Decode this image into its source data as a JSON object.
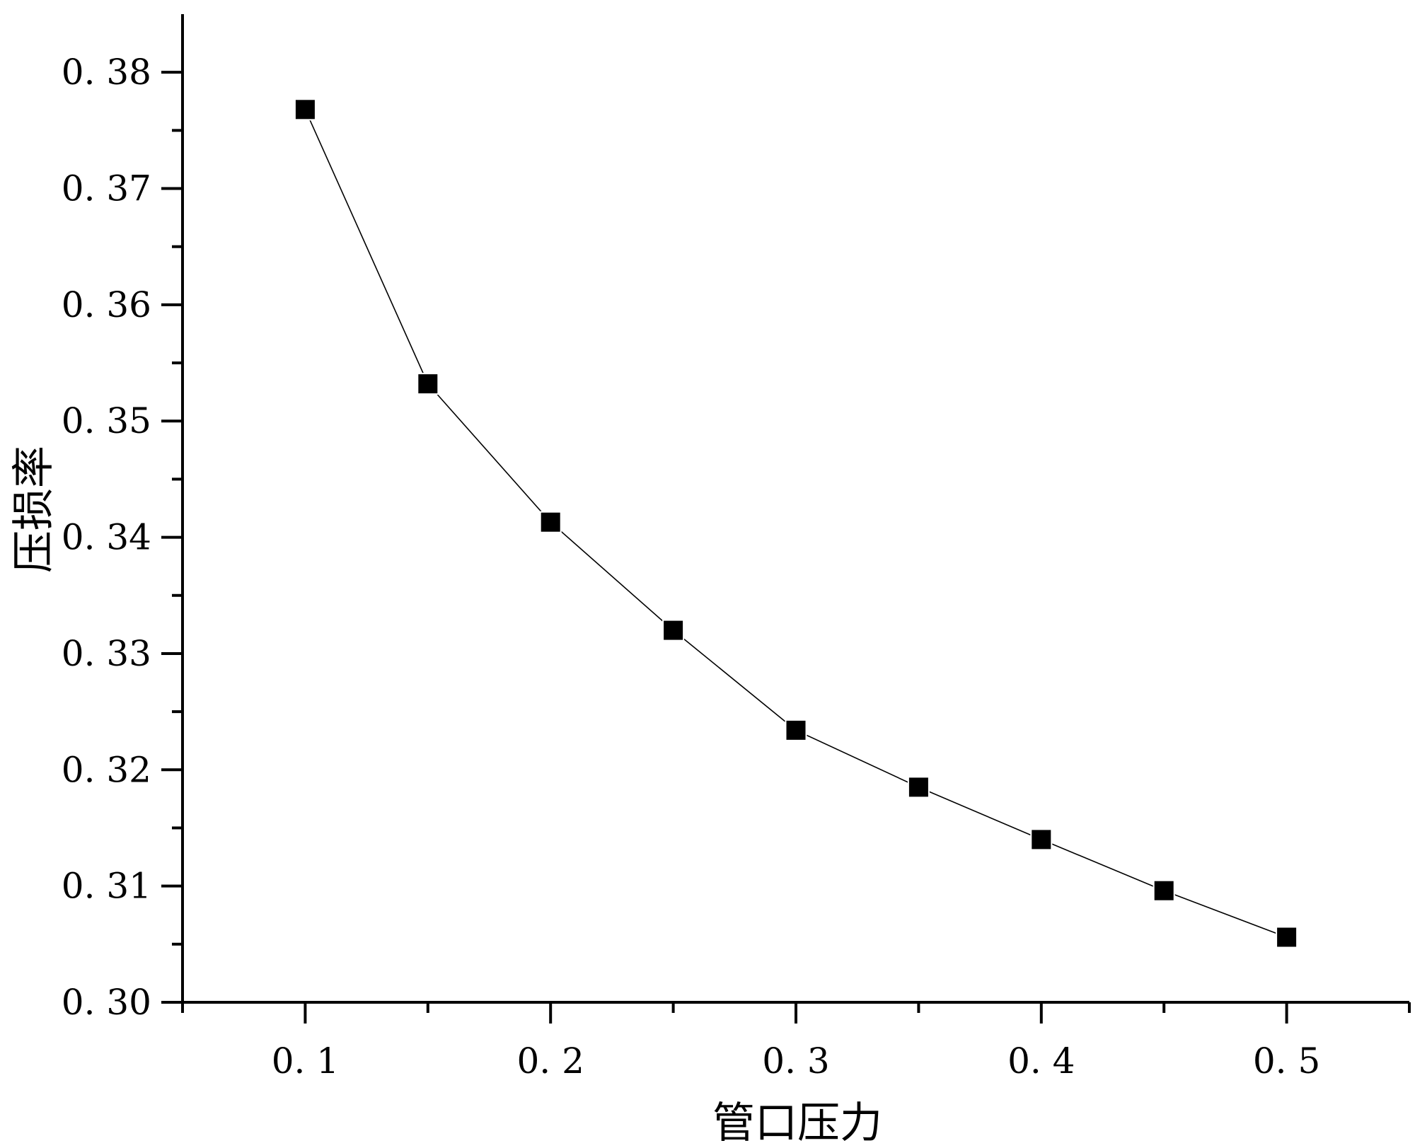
{
  "chart_data": {
    "type": "line",
    "marker": "square",
    "colors": {
      "line": "#000000",
      "marker": "#000000",
      "axis": "#000000",
      "background": "#ffffff"
    },
    "xlabel": "管口压力",
    "ylabel": "压损率",
    "xlim": [
      0.05,
      0.55
    ],
    "ylim": [
      0.3,
      0.385
    ],
    "x_ticks": [
      0.1,
      0.2,
      0.3,
      0.4,
      0.5
    ],
    "x_tick_labels": [
      "0. 1",
      "0. 2",
      "0. 3",
      "0. 4",
      "0. 5"
    ],
    "x_minor_ticks": [
      0.05,
      0.15,
      0.25,
      0.35,
      0.45,
      0.55
    ],
    "y_ticks": [
      0.3,
      0.31,
      0.32,
      0.33,
      0.34,
      0.35,
      0.36,
      0.37,
      0.38
    ],
    "y_tick_labels": [
      "0. 30",
      "0. 31",
      "0. 32",
      "0. 33",
      "0. 34",
      "0. 35",
      "0. 36",
      "0. 37",
      "0. 38"
    ],
    "y_minor_ticks": [
      0.305,
      0.315,
      0.325,
      0.335,
      0.345,
      0.355,
      0.365,
      0.375
    ],
    "grid": false,
    "legend": "none",
    "series": [
      {
        "x": [
          0.1,
          0.15,
          0.2,
          0.25,
          0.3,
          0.35,
          0.4,
          0.45,
          0.5
        ],
        "values": [
          0.3768,
          0.3532,
          0.3413,
          0.332,
          0.3234,
          0.3185,
          0.314,
          0.3096,
          0.3056
        ]
      }
    ]
  }
}
